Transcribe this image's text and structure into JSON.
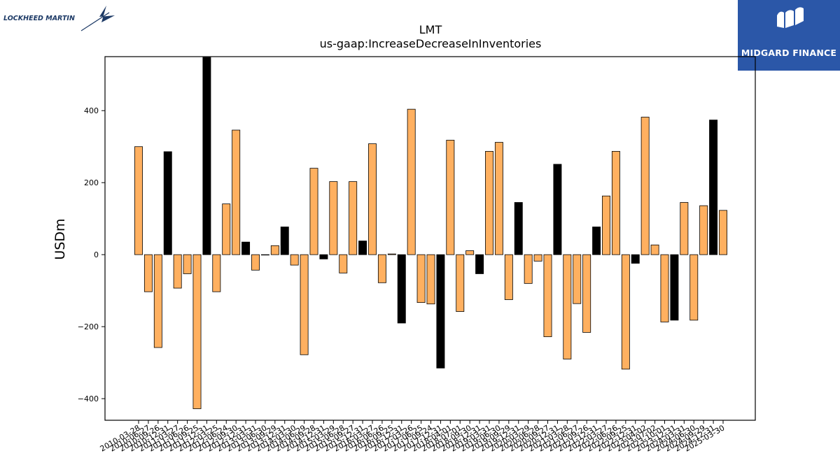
{
  "logos": {
    "left_text": "LOCKHEED MARTIN",
    "right_text": "MIDGARD FINANCE"
  },
  "colors": {
    "bar_positive_period": "#ffb060",
    "bar_annual": "#000000",
    "logo_right_bg": "#2b57a8",
    "logo_left_text": "#1d3a66"
  },
  "chart_data": {
    "type": "bar",
    "title": "LMT",
    "subtitle": "us-gaap:IncreaseDecreaseInInventories",
    "ylabel": "USDm",
    "xlabel": "",
    "ylim": [
      -460,
      550
    ],
    "yticks": [
      -400,
      -200,
      0,
      200,
      400
    ],
    "grid": false,
    "categories": [
      "2010-03-28",
      "2010-06-27",
      "2010-09-26",
      "2010-12-31",
      "2011-03-27",
      "2011-06-26",
      "2011-09-25",
      "2011-12-31",
      "2012-03-25",
      "2012-06-24",
      "2012-09-30",
      "2012-12-31",
      "2013-03-31",
      "2013-06-30",
      "2013-09-29",
      "2013-12-31",
      "2014-03-30",
      "2014-06-29",
      "2014-09-28",
      "2014-12-31",
      "2015-03-29",
      "2015-06-28",
      "2015-09-27",
      "2015-12-31",
      "2016-03-27",
      "2016-06-26",
      "2016-09-25",
      "2016-12-31",
      "2017-03-26",
      "2017-06-25",
      "2017-09-24",
      "2017-12-31",
      "2018-04-01",
      "2018-07-01",
      "2018-09-30",
      "2018-12-31",
      "2019-03-31",
      "2019-06-30",
      "2019-09-29",
      "2019-12-31",
      "2020-03-29",
      "2020-06-28",
      "2020-09-27",
      "2020-12-31",
      "2021-03-28",
      "2021-06-27",
      "2021-09-26",
      "2021-12-31",
      "2022-03-27",
      "2022-06-26",
      "2022-09-25",
      "2022-12-31",
      "2023-04-02",
      "2023-07-02",
      "2023-10-01",
      "2023-12-31",
      "2024-03-31",
      "2024-06-30",
      "2024-09-29",
      "2024-12-31",
      "2025-03-30"
    ],
    "annual_flags": [
      false,
      false,
      false,
      true,
      false,
      false,
      false,
      true,
      false,
      false,
      false,
      true,
      false,
      false,
      false,
      true,
      false,
      false,
      false,
      true,
      false,
      false,
      false,
      true,
      false,
      false,
      false,
      true,
      false,
      false,
      false,
      true,
      false,
      false,
      false,
      true,
      false,
      false,
      false,
      true,
      false,
      false,
      false,
      true,
      false,
      false,
      false,
      true,
      false,
      false,
      false,
      true,
      false,
      false,
      false,
      true,
      false,
      false,
      false,
      true,
      false
    ],
    "values": [
      300,
      -103,
      -258,
      286,
      -93,
      -53,
      -428,
      548,
      -103,
      141,
      346,
      35,
      -43,
      0,
      25,
      77,
      -29,
      -278,
      240,
      -12,
      203,
      -51,
      203,
      38,
      308,
      -78,
      2,
      -190,
      404,
      -133,
      -137,
      -315,
      318,
      -158,
      11,
      -53,
      287,
      312,
      -125,
      145,
      -80,
      -18,
      -228,
      251,
      -290,
      -136,
      -216,
      77,
      163,
      287,
      -318,
      -24,
      382,
      27,
      -187,
      -182,
      145,
      -182,
      136,
      374,
      123
    ]
  }
}
